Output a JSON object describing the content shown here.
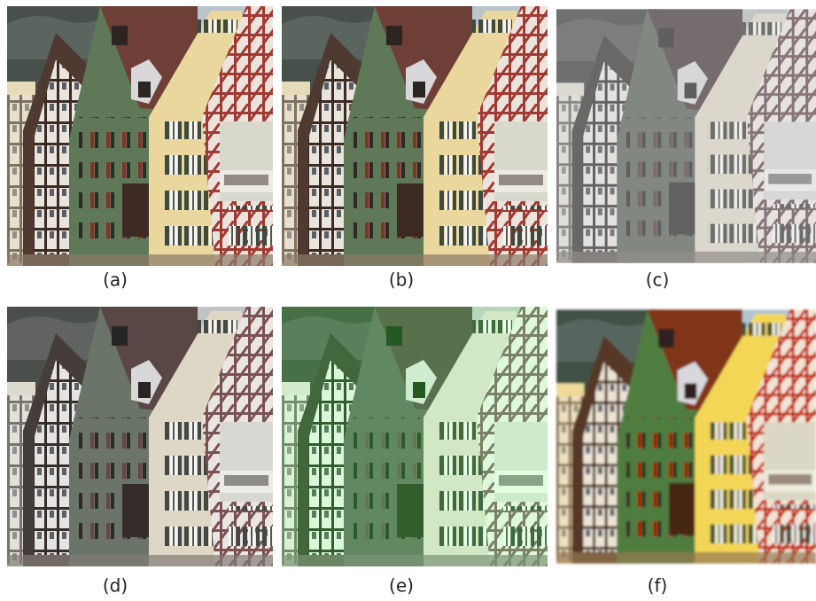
{
  "labels": [
    "(a)",
    "(b)",
    "(c)",
    "(d)",
    "(e)",
    "(f)"
  ]
}
